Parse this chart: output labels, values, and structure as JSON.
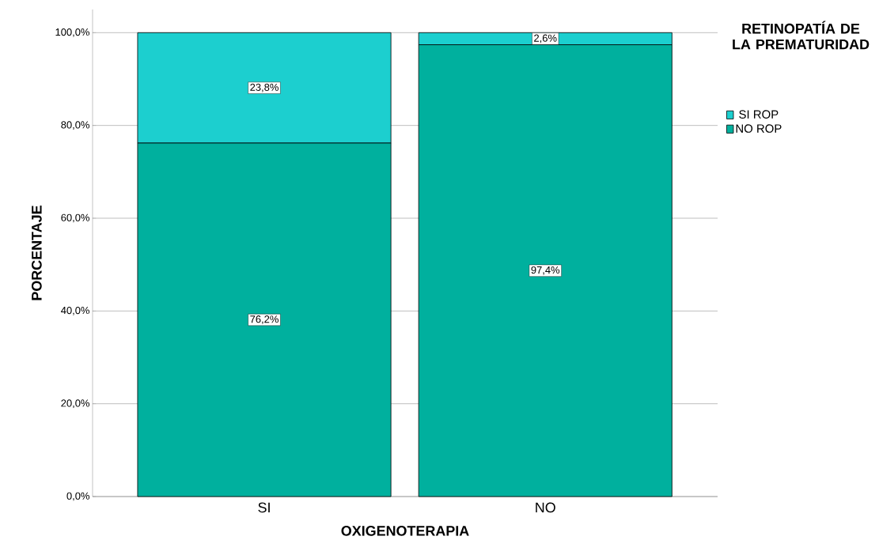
{
  "chart_data": {
    "type": "bar",
    "stacked": true,
    "xlabel": "OXIGENOTERAPIA",
    "ylabel": "PORCENTAJE",
    "legend_title": "RETINOPATÍA DE LA PREMATURIDAD",
    "legend": "top right",
    "grid": "y",
    "categories": [
      "SI",
      "NO"
    ],
    "series": [
      {
        "name": "NO ROP",
        "color": "#00b09e",
        "values": [
          76.2,
          97.4
        ],
        "value_labels": [
          "76,2%",
          "97,4%"
        ]
      },
      {
        "name": "SI ROP",
        "color": "#1ccfcf",
        "values": [
          23.8,
          2.6
        ],
        "value_labels": [
          "23,8%",
          "2,6%"
        ]
      }
    ],
    "ylim": [
      0,
      105
    ],
    "yticks": [
      {
        "value": 0,
        "label": "0,0%"
      },
      {
        "value": 20,
        "label": "20,0%"
      },
      {
        "value": 40,
        "label": "40,0%"
      },
      {
        "value": 60,
        "label": "60,0%"
      },
      {
        "value": 80,
        "label": "80,0%"
      },
      {
        "value": 100,
        "label": "100,0%"
      }
    ]
  }
}
